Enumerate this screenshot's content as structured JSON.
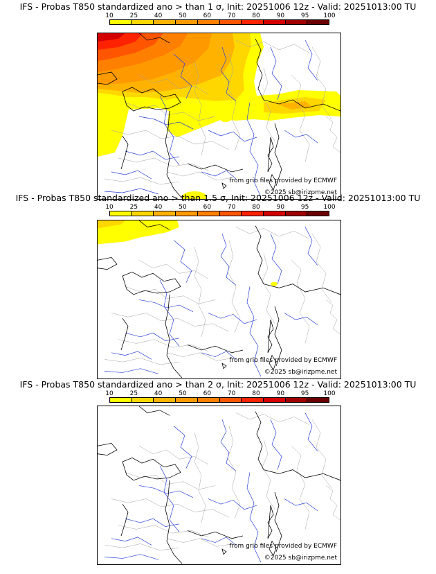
{
  "legend": {
    "ticks": [
      "10",
      "25",
      "40",
      "50",
      "60",
      "70",
      "80",
      "90",
      "95",
      "100"
    ],
    "colors": [
      "#ffff00",
      "#ffd700",
      "#ffb300",
      "#ff9900",
      "#ff7f00",
      "#ff5500",
      "#ff2200",
      "#d40000",
      "#a00000",
      "#6b0000"
    ]
  },
  "map": {
    "land_color": "#ffffff",
    "river_color": "#3344cc",
    "border_color": "#000000",
    "admin_color": "#999999"
  },
  "panels": [
    {
      "title": "IFS - Probas T850  standardized ano > than 1 σ, Init: 20251006 12z - Valid: 20251013:00 TU",
      "sigma": "1",
      "credit_source": "from grib files provided by ECMWF",
      "credit_copyright": "©2025 sb@irizpme.net"
    },
    {
      "title": "IFS - Probas T850  standardized ano > than 1.5 σ, Init: 20251006 12z - Valid: 20251013:00 TU",
      "sigma": "1.5",
      "credit_source": "from grib files provided by ECMWF",
      "credit_copyright": "©2025 sb@irizpme.net"
    },
    {
      "title": "IFS - Probas T850  standardized ano > than 2 σ, Init: 20251006 12z - Valid: 20251013:00 TU",
      "sigma": "2",
      "credit_source": "from grib files provided by ECMWF",
      "credit_copyright": "©2025 sb@irizpme.net"
    }
  ]
}
